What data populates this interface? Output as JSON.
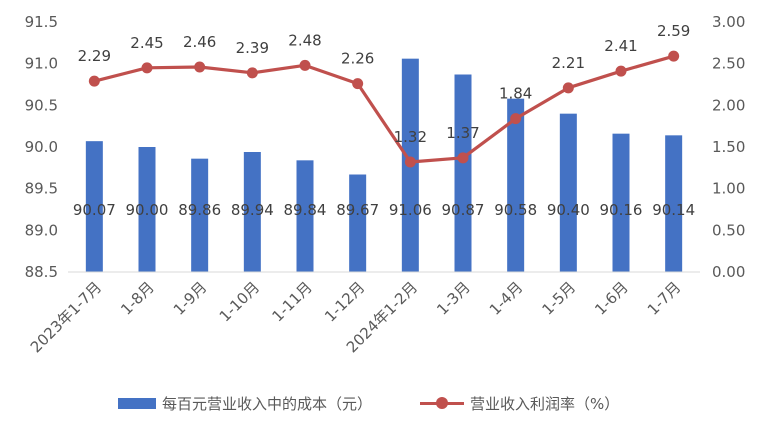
{
  "chart_data": {
    "type": "bar+line",
    "categories": [
      "2023年1-7月",
      "1-8月",
      "1-9月",
      "1-10月",
      "1-11月",
      "1-12月",
      "2024年1-2月",
      "1-3月",
      "1-4月",
      "1-5月",
      "1-6月",
      "1-7月"
    ],
    "series": [
      {
        "name": "每百元营业收入中的成本（元）",
        "type": "bar",
        "axis": "left",
        "color": "#4472C4",
        "values": [
          90.07,
          90.0,
          89.86,
          89.94,
          89.84,
          89.67,
          91.06,
          90.87,
          90.58,
          90.4,
          90.16,
          90.14
        ],
        "labels": [
          "90.07",
          "90.00",
          "89.86",
          "89.94",
          "89.84",
          "89.67",
          "91.06",
          "90.87",
          "90.58",
          "90.40",
          "90.16",
          "90.14"
        ]
      },
      {
        "name": "营业收入利润率（%）",
        "type": "line",
        "axis": "right",
        "color": "#C0504D",
        "values": [
          2.29,
          2.45,
          2.46,
          2.39,
          2.48,
          2.26,
          1.32,
          1.37,
          1.84,
          2.21,
          2.41,
          2.59
        ],
        "labels": [
          "2.29",
          "2.45",
          "2.46",
          "2.39",
          "2.48",
          "2.26",
          "1.32",
          "1.37",
          "1.84",
          "2.21",
          "2.41",
          "2.59"
        ]
      }
    ],
    "y_left": {
      "min": 88.5,
      "max": 91.5,
      "ticks": [
        "88.5",
        "89.0",
        "89.5",
        "90.0",
        "90.5",
        "91.0",
        "91.5"
      ]
    },
    "y_right": {
      "min": 0,
      "max": 3,
      "ticks": [
        "0.00",
        "0.50",
        "1.00",
        "1.50",
        "2.00",
        "2.50",
        "3.00"
      ]
    },
    "grid": false,
    "legend_position": "bottom"
  }
}
